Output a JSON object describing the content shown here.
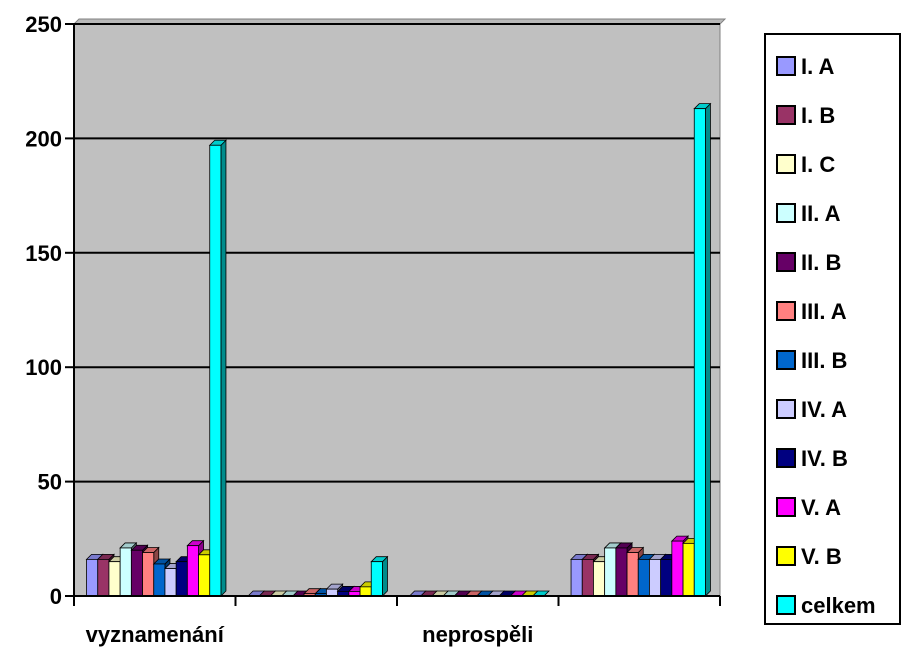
{
  "chart_data": {
    "type": "bar",
    "title": "",
    "xlabel": "",
    "ylabel": "",
    "ylim": [
      0,
      250
    ],
    "yticks": [
      "0",
      "50",
      "100",
      "150",
      "200",
      "250"
    ],
    "grid": true,
    "legend_position": "right",
    "categories": [
      "vyznamenání",
      "",
      "neprospěli",
      ""
    ],
    "category_labels_shown": [
      "vyznamenání",
      "neprospěli"
    ],
    "series": [
      {
        "name": "I. A",
        "color": "#9999FF",
        "values": [
          16,
          0,
          0,
          16
        ]
      },
      {
        "name": "I. B",
        "color": "#993366",
        "values": [
          16,
          0,
          0,
          16
        ]
      },
      {
        "name": "I. C",
        "color": "#FFFFCC",
        "values": [
          15,
          0,
          0,
          15
        ]
      },
      {
        "name": "II. A",
        "color": "#CCFFFF",
        "values": [
          21,
          0,
          0,
          21
        ]
      },
      {
        "name": "II. B",
        "color": "#660066",
        "values": [
          20,
          0,
          0,
          21
        ]
      },
      {
        "name": "III. A",
        "color": "#FF8080",
        "values": [
          19,
          1,
          0,
          19
        ]
      },
      {
        "name": "III. B",
        "color": "#0066CC",
        "values": [
          14,
          1,
          0,
          16
        ]
      },
      {
        "name": "IV. A",
        "color": "#CCCCFF",
        "values": [
          12,
          3,
          0,
          16
        ]
      },
      {
        "name": "IV. B",
        "color": "#000080",
        "values": [
          15,
          2,
          0,
          16
        ]
      },
      {
        "name": "V. A",
        "color": "#FF00FF",
        "values": [
          22,
          2,
          0,
          24
        ]
      },
      {
        "name": "V. B",
        "color": "#FFFF00",
        "values": [
          18,
          4,
          0,
          23
        ]
      },
      {
        "name": "celkem",
        "color": "#00FFFF",
        "values": [
          197,
          15,
          0,
          213
        ]
      }
    ]
  }
}
